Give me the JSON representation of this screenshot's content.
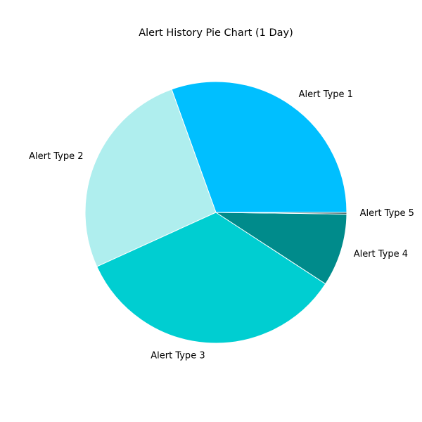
{
  "chart_data": {
    "type": "pie",
    "title": "Alert History Pie Chart (1 Day)",
    "start_angle_deg": 0,
    "direction": "counterclockwise",
    "slice_edge_color": "#ffffff",
    "slices": [
      {
        "label": "Alert Type 1",
        "value": 30.5,
        "color": "#00bfff"
      },
      {
        "label": "Alert Type 2",
        "value": 26.3,
        "color": "#afeeee"
      },
      {
        "label": "Alert Type 3",
        "value": 34.0,
        "color": "#00ced1"
      },
      {
        "label": "Alert Type 4",
        "value": 9.0,
        "color": "#008b8b"
      },
      {
        "label": "Alert Type 5",
        "value": 0.2,
        "color": "#2f4f4f"
      }
    ]
  }
}
